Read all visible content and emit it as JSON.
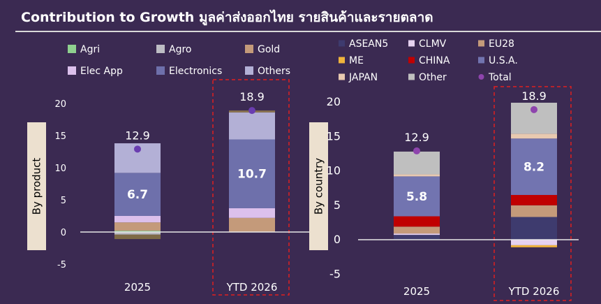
{
  "title": "Contribution to Growth มูลค่าส่งออกไทย รายสินค้าและรายตลาด",
  "chart_data": [
    {
      "type": "bar",
      "stacked": true,
      "ylabel": "By product",
      "categories": [
        "2025",
        "YTD 2026"
      ],
      "ylim": [
        -5,
        20
      ],
      "yticks": [
        -5,
        0,
        5,
        10,
        15,
        20
      ],
      "highlight": "YTD 2026",
      "series": [
        {
          "name": "Agri",
          "color": "#8fd08f",
          "values": [
            0.2,
            0.0
          ]
        },
        {
          "name": "Agro",
          "color": "#bdbdc4",
          "values": [
            -0.4,
            0.0
          ]
        },
        {
          "name": "Gold",
          "color": "#c49a7a",
          "values": [
            1.3,
            2.2
          ]
        },
        {
          "name": "Elec App",
          "color": "#dcc0ec",
          "values": [
            1.0,
            1.5
          ]
        },
        {
          "name": "Electronics",
          "color": "#6e70ab",
          "values": [
            6.7,
            10.7
          ]
        },
        {
          "name": "Others",
          "color": "#b3b0d6",
          "values": [
            4.6,
            4.2
          ]
        },
        {
          "name": "Others-neg",
          "legend": false,
          "color": "#7e6a46",
          "values": [
            -0.7,
            0.0
          ]
        },
        {
          "name": "Gold-top",
          "legend": false,
          "color": "#8a7350",
          "values": [
            0.0,
            0.3
          ]
        }
      ],
      "totals": [
        12.9,
        18.9
      ],
      "total_markers": [
        12.9,
        18.9
      ],
      "inner_labels": [
        {
          "series": "Electronics",
          "values": [
            "6.7",
            "10.7"
          ]
        }
      ],
      "total_labels": [
        "12.9",
        "18.9"
      ]
    },
    {
      "type": "bar",
      "stacked": true,
      "ylabel": "By country",
      "categories": [
        "2025",
        "YTD 2026"
      ],
      "ylim": [
        -5,
        20
      ],
      "yticks": [
        -5,
        0,
        5,
        10,
        15,
        20
      ],
      "highlight": "YTD 2026",
      "series": [
        {
          "name": "ASEAN5",
          "color": "#3e3b6e",
          "values": [
            0.7,
            3.3
          ]
        },
        {
          "name": "CLMV",
          "color": "#e6d2f0",
          "values": [
            0.2,
            -0.8
          ]
        },
        {
          "name": "EU28",
          "color": "#c49a7a",
          "values": [
            1.0,
            1.7
          ]
        },
        {
          "name": "ME",
          "color": "#f0b43c",
          "values": [
            0.0,
            -0.3
          ]
        },
        {
          "name": "CHINA",
          "color": "#c00000",
          "values": [
            1.5,
            1.5
          ]
        },
        {
          "name": "U.S.A.",
          "color": "#7274b0",
          "values": [
            5.8,
            8.2
          ]
        },
        {
          "name": "JAPAN",
          "color": "#e8c9b0",
          "values": [
            0.3,
            0.7
          ]
        },
        {
          "name": "Other",
          "color": "#bfbfbf",
          "values": [
            3.3,
            4.5
          ]
        },
        {
          "name": "Total",
          "color": "#8e44ad",
          "marker": true
        }
      ],
      "totals": [
        12.9,
        18.9
      ],
      "total_markers": [
        12.9,
        18.9
      ],
      "inner_labels": [
        {
          "series": "U.S.A.",
          "values": [
            "5.8",
            "8.2"
          ]
        }
      ],
      "total_labels": [
        "12.9",
        "18.9"
      ]
    }
  ]
}
